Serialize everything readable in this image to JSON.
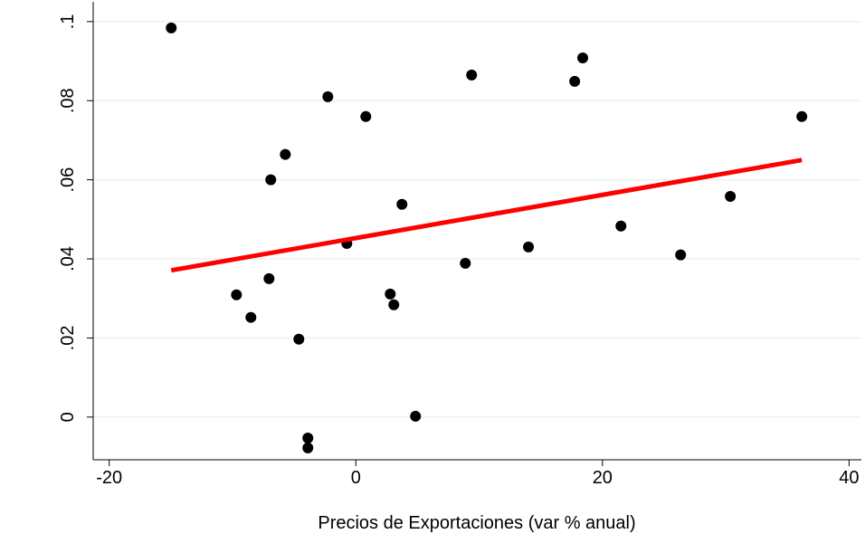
{
  "chart_data": {
    "type": "scatter",
    "x_label": "Precios de Exportaciones (var % anual)",
    "x": [
      -14.97,
      -2.27,
      0.81,
      -5.72,
      -6.9,
      3.74,
      -0.73,
      9.39,
      18.4,
      17.75,
      36.17,
      30.37,
      21.5,
      14.0,
      26.34,
      8.88,
      -7.04,
      -9.68,
      -8.51,
      2.79,
      3.08,
      -4.62,
      4.84,
      -3.89,
      -3.89
    ],
    "y": [
      0.0984,
      0.081,
      0.076,
      0.0664,
      0.06,
      0.0538,
      0.0439,
      0.0865,
      0.0908,
      0.0849,
      0.076,
      0.0558,
      0.0483,
      0.043,
      0.041,
      0.0389,
      0.035,
      0.0309,
      0.0252,
      0.0311,
      0.0284,
      0.0197,
      0.0002,
      -0.0053,
      -0.0078
    ],
    "color": "#000000",
    "fit_line": {
      "x": [
        -14.97,
        36.17
      ],
      "y": [
        0.0371,
        0.065
      ],
      "color": "#ff0000"
    },
    "xlim": [
      -21.3,
      41.0
    ],
    "xticks": [
      -20,
      0,
      20,
      40
    ],
    "ylim": [
      -0.0108,
      0.105
    ],
    "yticks": [
      0,
      {
        "value": 0.02,
        "label": ".02"
      },
      {
        "value": 0.04,
        "label": ".04"
      },
      {
        "value": 0.06,
        "label": ".06"
      },
      {
        "value": 0.08,
        "label": ".08"
      },
      {
        "value": 0.1,
        "label": ".1"
      }
    ],
    "grid": true
  }
}
